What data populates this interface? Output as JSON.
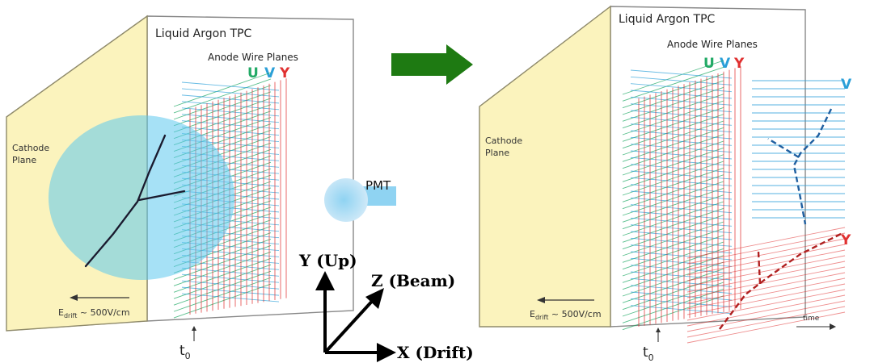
{
  "left_panel": {
    "title": "Liquid Argon TPC",
    "anode_label": "Anode Wire Planes",
    "plane_u": "U",
    "plane_v": "V",
    "plane_y": "Y",
    "cathode_line1": "Cathode",
    "cathode_line2": "Plane",
    "efield_prefix": "E",
    "efield_sub": "drift",
    "efield_suffix": " ~ 500V/cm",
    "t0_main": "t",
    "t0_sub": "0",
    "pmt_label": "PMT"
  },
  "right_panel": {
    "title": "Liquid Argon TPC",
    "anode_label": "Anode Wire Planes",
    "plane_u": "U",
    "plane_v": "V",
    "plane_y": "Y",
    "cathode_line1": "Cathode",
    "cathode_line2": "Plane",
    "efield_prefix": "E",
    "efield_sub": "drift",
    "efield_suffix": " ~ 500V/cm",
    "t0_main": "t",
    "t0_sub": "0",
    "signal_v": "V",
    "signal_y": "Y",
    "time_label": "time"
  },
  "axes": {
    "y_label": "Y (Up)",
    "z_label": "Z (Beam)",
    "x_label": "X (Drift)"
  },
  "colors": {
    "cathode_fill": "#fbf3bd",
    "u_color": "#22aa66",
    "v_color": "#2a9fd8",
    "y_color": "#e03030",
    "light_blue": "#5cc8ee",
    "arrow_green": "#1e7a12",
    "track": "#1a1a2e"
  }
}
